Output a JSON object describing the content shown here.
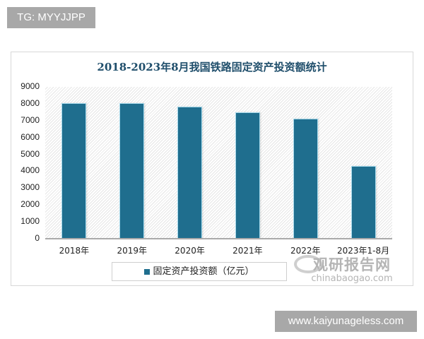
{
  "overlay": {
    "top_left_tag": "TG: MYYJJPP",
    "bottom_right_tag": "www.kaiyunageless.com"
  },
  "watermark": {
    "cn": "观研报告网",
    "en": "chinabaogao.com"
  },
  "chart_data": {
    "type": "bar",
    "title": "2018-2023年8月我国铁路固定资产投资额统计",
    "categories": [
      "2018年",
      "2019年",
      "2020年",
      "2021年",
      "2022年",
      "2023年1-8月"
    ],
    "series": [
      {
        "name": "固定资产投资额（亿元）",
        "values": [
          8028,
          8029,
          7819,
          7489,
          7109,
          4310
        ],
        "color": "#1f6e8e"
      }
    ],
    "xlabel": "",
    "ylabel": "",
    "ylim": [
      0,
      9000
    ],
    "yticks": [
      "9000",
      "8000",
      "7000",
      "6000",
      "5000",
      "4000",
      "3000",
      "2000",
      "1000",
      "0"
    ],
    "grid": false,
    "legend_position": "bottom"
  }
}
